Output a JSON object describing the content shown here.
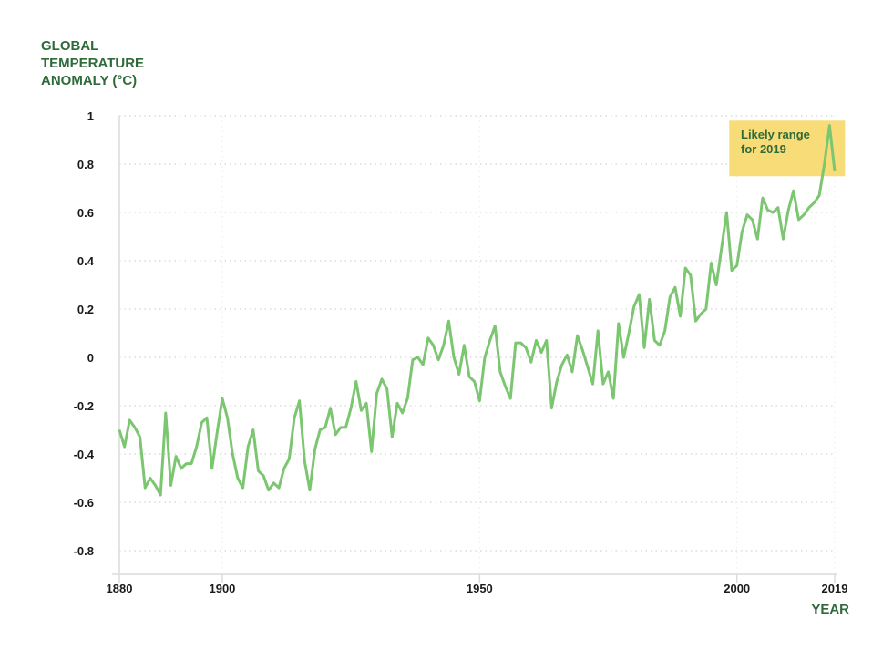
{
  "chart_data": {
    "type": "line",
    "ylabel_lines": [
      "GLOBAL",
      "TEMPERATURE",
      "ANOMALY (°C)"
    ],
    "xlabel": "YEAR",
    "ylim": [
      -0.8,
      1
    ],
    "xlim": [
      1880,
      2019
    ],
    "yticks": [
      1,
      0.8,
      0.6,
      0.4,
      0.2,
      0,
      -0.2,
      -0.4,
      -0.6,
      -0.8
    ],
    "ytick_labels": [
      "1",
      "0.8",
      "0.6",
      "0.4",
      "0.2",
      "0",
      "-0.2",
      "-0.4",
      "-0.6",
      "-0.8"
    ],
    "xticks": [
      1880,
      1900,
      1950,
      2000,
      2019
    ],
    "xtick_labels": [
      "1880",
      "1900",
      "1950",
      "2000",
      "2019"
    ],
    "grid": "horizontal dotted",
    "annotation": {
      "lines": [
        "Likely range",
        "for 2019"
      ],
      "y_range": [
        0.75,
        0.98
      ],
      "x_range": [
        1998.5,
        2021
      ],
      "color": "#f8dc78"
    },
    "series": [
      {
        "name": "Global temperature anomaly",
        "color": "#7cc671",
        "start_year": 1880,
        "values": [
          -0.3,
          -0.37,
          -0.26,
          -0.29,
          -0.33,
          -0.54,
          -0.5,
          -0.53,
          -0.57,
          -0.23,
          -0.53,
          -0.41,
          -0.46,
          -0.44,
          -0.44,
          -0.37,
          -0.27,
          -0.25,
          -0.46,
          -0.31,
          -0.17,
          -0.25,
          -0.4,
          -0.5,
          -0.54,
          -0.37,
          -0.3,
          -0.47,
          -0.49,
          -0.55,
          -0.52,
          -0.54,
          -0.46,
          -0.42,
          -0.25,
          -0.18,
          -0.43,
          -0.55,
          -0.38,
          -0.3,
          -0.29,
          -0.21,
          -0.32,
          -0.29,
          -0.29,
          -0.21,
          -0.1,
          -0.22,
          -0.19,
          -0.39,
          -0.15,
          -0.09,
          -0.13,
          -0.33,
          -0.19,
          -0.23,
          -0.17,
          -0.01,
          0.0,
          -0.03,
          0.08,
          0.05,
          -0.01,
          0.05,
          0.15,
          0.0,
          -0.07,
          0.05,
          -0.08,
          -0.1,
          -0.18,
          0.0,
          0.07,
          0.13,
          -0.06,
          -0.12,
          -0.17,
          0.06,
          0.06,
          0.04,
          -0.02,
          0.07,
          0.02,
          0.07,
          -0.21,
          -0.1,
          -0.03,
          0.01,
          -0.06,
          0.09,
          0.03,
          -0.04,
          -0.11,
          0.11,
          -0.11,
          -0.06,
          -0.17,
          0.14,
          0.0,
          0.1,
          0.21,
          0.26,
          0.04,
          0.24,
          0.07,
          0.05,
          0.11,
          0.25,
          0.29,
          0.17,
          0.37,
          0.34,
          0.15,
          0.18,
          0.2,
          0.39,
          0.3,
          0.45,
          0.6,
          0.36,
          0.38,
          0.52,
          0.59,
          0.57,
          0.49,
          0.66,
          0.61,
          0.6,
          0.62,
          0.49,
          0.61,
          0.69,
          0.57,
          0.59,
          0.62,
          0.64,
          0.67,
          0.8,
          0.96,
          0.77
        ]
      }
    ]
  }
}
